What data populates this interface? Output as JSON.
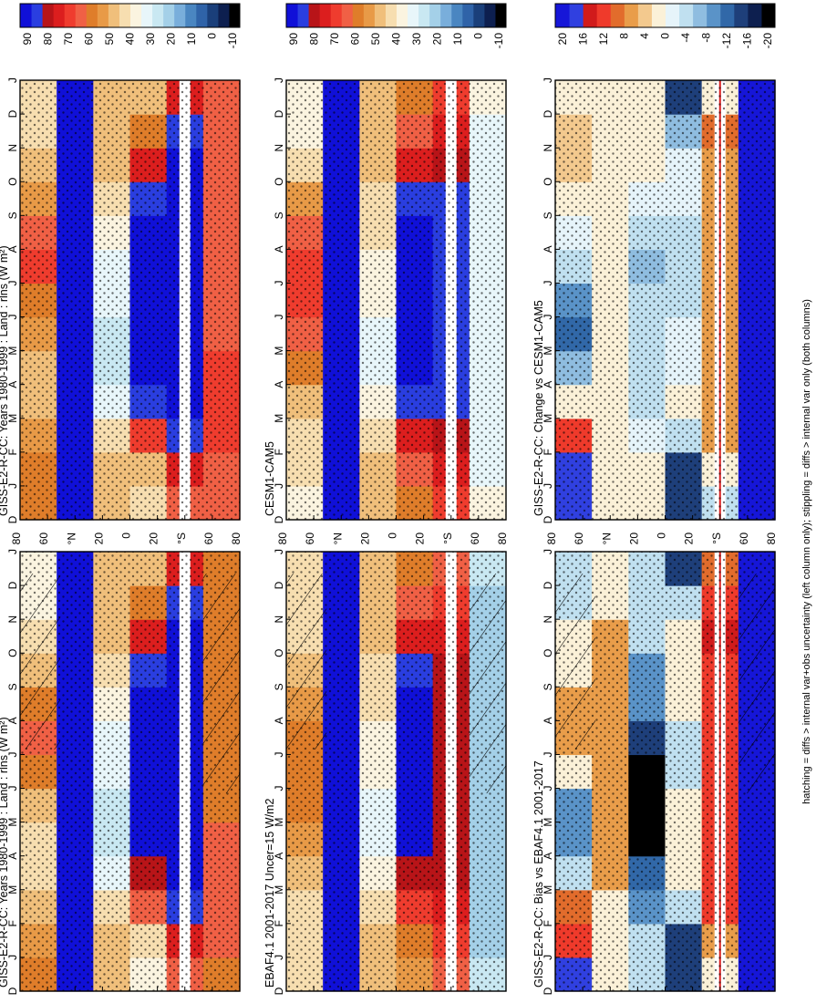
{
  "figure": {
    "footnote": "hatching = diffs > internal var+obs uncertainty (left column only); stippling = diffs > internal var only (both columns)"
  },
  "colors": {
    "abs": [
      "#000000",
      "#0d1f4f",
      "#1a3f7a",
      "#2f63a8",
      "#4a86c1",
      "#79aedb",
      "#a4d0e8",
      "#c9e8f2",
      "#e8f6fa",
      "#fbf4e0",
      "#f7deb0",
      "#f0bf7b",
      "#e89a47",
      "#df7d2a",
      "#f06045",
      "#ef3c2e",
      "#dc1e1e",
      "#b81418",
      "#2a3ee0",
      "#1010d8"
    ],
    "diff": [
      "#000000",
      "#0d1f4f",
      "#1e3f7a",
      "#3168a8",
      "#5a93c8",
      "#8fbde0",
      "#c0e0f0",
      "#e6f4fa",
      "#fbf1d8",
      "#f3c98e",
      "#e99d4a",
      "#e26c2c",
      "#ef3a2b",
      "#d11b1b",
      "#3040e0",
      "#1616d8"
    ]
  },
  "chart_data": [
    {
      "type": "heatmap",
      "title": "GISS-E2-R-CC: Years 1980-1999 : Land : rlns (W m²)",
      "xlabel": "",
      "ylabel": "",
      "x_ticks": [
        "D",
        "J",
        "F",
        "M",
        "A",
        "M",
        "J",
        "J",
        "A",
        "S",
        "O",
        "N",
        "D",
        "J"
      ],
      "y_ticks": [
        "80",
        "60",
        "°N",
        "20",
        "0",
        "20",
        "°S",
        "60",
        "80"
      ],
      "ylim": [
        -90,
        90
      ],
      "colorbar_ticks": [
        "90",
        "80",
        "70",
        "60",
        "50",
        "40",
        "30",
        "20",
        "10",
        "0",
        "-10"
      ],
      "hatching": true,
      "values": [
        [
          55,
          50,
          48,
          42,
          40,
          45,
          55,
          60,
          55,
          45,
          40,
          35,
          35
        ],
        [
          90,
          90,
          90,
          90,
          90,
          90,
          90,
          90,
          90,
          90,
          90,
          90,
          90
        ],
        [
          45,
          45,
          40,
          30,
          25,
          28,
          30,
          32,
          35,
          40,
          45,
          45,
          45
        ],
        [
          35,
          40,
          60,
          75,
          85,
          85,
          85,
          85,
          85,
          80,
          70,
          55,
          45
        ],
        [
          60,
          70,
          80,
          85,
          85,
          85,
          85,
          85,
          85,
          85,
          85,
          80,
          70
        ],
        [
          58,
          60,
          62,
          62,
          60,
          58,
          56,
          55,
          55,
          55,
          56,
          57,
          58
        ]
      ]
    },
    {
      "type": "heatmap",
      "title": "GISS-E2-R-CC: Years 1980-1999 : Land : rlns (W m²)",
      "xlabel": "",
      "ylabel": "",
      "x_ticks": [
        "D",
        "J",
        "F",
        "M",
        "A",
        "M",
        "J",
        "J",
        "A",
        "S",
        "O",
        "N",
        "D",
        "J"
      ],
      "y_ticks": [
        "80",
        "60",
        "°N",
        "20",
        "0",
        "20",
        "°S",
        "60",
        "80"
      ],
      "ylim": [
        -90,
        90
      ],
      "colorbar_ticks": [
        "90",
        "80",
        "70",
        "60",
        "50",
        "40",
        "30",
        "20",
        "10",
        "0",
        "-10"
      ],
      "hatching": false,
      "values": [
        [
          55,
          55,
          52,
          48,
          48,
          50,
          58,
          65,
          60,
          50,
          45,
          42,
          40
        ],
        [
          90,
          90,
          90,
          90,
          90,
          90,
          90,
          90,
          90,
          90,
          90,
          90,
          90
        ],
        [
          45,
          45,
          40,
          30,
          25,
          28,
          30,
          32,
          35,
          40,
          45,
          45,
          45
        ],
        [
          40,
          45,
          65,
          80,
          88,
          88,
          88,
          88,
          85,
          80,
          70,
          55,
          45
        ],
        [
          60,
          70,
          80,
          85,
          85,
          85,
          85,
          85,
          85,
          85,
          85,
          80,
          70
        ],
        [
          62,
          64,
          66,
          66,
          65,
          63,
          62,
          60,
          60,
          60,
          61,
          62,
          62
        ]
      ]
    },
    {
      "type": "heatmap",
      "title": "EBAF4.1 2001-2017 Uncer=15 W/m2",
      "xlabel": "",
      "ylabel": "",
      "x_ticks": [
        "D",
        "J",
        "F",
        "M",
        "A",
        "M",
        "J",
        "J",
        "A",
        "S",
        "O",
        "N",
        "D",
        "J"
      ],
      "y_ticks": [
        "80",
        "60",
        "°N",
        "20",
        "0",
        "20",
        "°S",
        "60",
        "80"
      ],
      "ylim": [
        -90,
        90
      ],
      "colorbar_ticks": [
        "90",
        "80",
        "70",
        "60",
        "50",
        "40",
        "30",
        "20",
        "10",
        "0",
        "-10"
      ],
      "hatching": true,
      "values": [
        [
          40,
          40,
          40,
          45,
          50,
          55,
          55,
          55,
          50,
          45,
          40,
          40,
          40
        ],
        [
          90,
          90,
          88,
          85,
          85,
          85,
          85,
          85,
          85,
          85,
          85,
          88,
          90
        ],
        [
          45,
          45,
          42,
          35,
          30,
          32,
          35,
          38,
          40,
          42,
          45,
          45,
          45
        ],
        [
          50,
          55,
          65,
          75,
          85,
          85,
          88,
          88,
          85,
          80,
          70,
          60,
          55
        ],
        [
          60,
          65,
          70,
          75,
          75,
          75,
          75,
          75,
          75,
          75,
          72,
          68,
          62
        ],
        [
          25,
          24,
          22,
          20,
          20,
          20,
          20,
          20,
          20,
          20,
          22,
          24,
          25
        ]
      ]
    },
    {
      "type": "heatmap",
      "title": "CESM1-CAM5",
      "xlabel": "",
      "ylabel": "",
      "x_ticks": [
        "D",
        "J",
        "F",
        "M",
        "A",
        "M",
        "J",
        "J",
        "A",
        "S",
        "O",
        "N",
        "D",
        "J"
      ],
      "y_ticks": [
        "80",
        "60",
        "°N",
        "20",
        "0",
        "20",
        "°S",
        "60",
        "80"
      ],
      "ylim": [
        -90,
        90
      ],
      "colorbar_ticks": [
        "90",
        "80",
        "70",
        "60",
        "50",
        "40",
        "30",
        "20",
        "10",
        "0",
        "-10"
      ],
      "hatching": false,
      "values": [
        [
          38,
          40,
          42,
          48,
          55,
          62,
          68,
          68,
          62,
          50,
          42,
          38,
          38
        ],
        [
          90,
          90,
          90,
          90,
          90,
          90,
          90,
          90,
          90,
          90,
          90,
          90,
          90
        ],
        [
          45,
          45,
          42,
          35,
          30,
          32,
          35,
          38,
          40,
          42,
          45,
          45,
          45
        ],
        [
          55,
          60,
          70,
          80,
          90,
          90,
          90,
          90,
          88,
          82,
          72,
          62,
          58
        ],
        [
          65,
          70,
          75,
          80,
          80,
          80,
          80,
          80,
          80,
          80,
          78,
          72,
          68
        ],
        [
          35,
          34,
          32,
          30,
          30,
          30,
          30,
          30,
          30,
          30,
          32,
          34,
          35
        ]
      ]
    },
    {
      "type": "heatmap",
      "title": "GISS-E2-R-CC: Bias vs EBAF4.1 2001-2017",
      "xlabel": "",
      "ylabel": "",
      "x_ticks": [
        "D",
        "J",
        "F",
        "M",
        "A",
        "M",
        "J",
        "J",
        "A",
        "S",
        "O",
        "N",
        "D",
        "J"
      ],
      "y_ticks": [
        "80",
        "60",
        "°N",
        "20",
        "0",
        "20",
        "°S",
        "60",
        "80"
      ],
      "ylim": [
        -90,
        90
      ],
      "colorbar_ticks": [
        "20",
        "16",
        "12",
        "8",
        "4",
        "0",
        "-4",
        "-8",
        "-12",
        "-16",
        "-20"
      ],
      "hatching": true,
      "values": [
        [
          15,
          10,
          8,
          -3,
          -10,
          -10,
          0,
          5,
          5,
          0,
          0,
          -5,
          -5
        ],
        [
          0,
          0,
          2,
          5,
          5,
          5,
          5,
          5,
          5,
          5,
          5,
          2,
          0
        ],
        [
          -5,
          -5,
          -8,
          -12,
          -20,
          -20,
          -20,
          -15,
          -10,
          -8,
          -5,
          -5,
          -5
        ],
        [
          -15,
          -15,
          -5,
          0,
          0,
          0,
          -3,
          -3,
          0,
          0,
          0,
          -5,
          -15
        ],
        [
          0,
          5,
          10,
          10,
          10,
          10,
          10,
          10,
          10,
          10,
          13,
          12,
          8
        ],
        [
          35,
          36,
          44,
          46,
          45,
          43,
          42,
          40,
          40,
          40,
          39,
          38,
          37
        ]
      ]
    },
    {
      "type": "heatmap",
      "title": "GISS-E2-R-CC: Change vs CESM1-CAM5",
      "xlabel": "",
      "ylabel": "",
      "x_ticks": [
        "D",
        "J",
        "F",
        "M",
        "A",
        "M",
        "J",
        "J",
        "A",
        "S",
        "O",
        "N",
        "D",
        "J"
      ],
      "y_ticks": [
        "80",
        "60",
        "°N",
        "20",
        "0",
        "20",
        "°S",
        "60",
        "80"
      ],
      "ylim": [
        -90,
        90
      ],
      "colorbar_ticks": [
        "20",
        "16",
        "12",
        "8",
        "4",
        "0",
        "-4",
        "-8",
        "-12",
        "-16",
        "-20"
      ],
      "hatching": false,
      "values": [
        [
          17,
          15,
          10,
          0,
          -7,
          -12,
          -10,
          -3,
          -2,
          0,
          3,
          4,
          2
        ],
        [
          0,
          0,
          0,
          0,
          0,
          0,
          0,
          0,
          0,
          0,
          0,
          0,
          0
        ],
        [
          0,
          0,
          -2,
          -5,
          -5,
          -4,
          -5,
          -6,
          -5,
          -2,
          0,
          0,
          0
        ],
        [
          -15,
          -15,
          -5,
          0,
          -2,
          -2,
          -5,
          -5,
          -3,
          -2,
          -2,
          -7,
          -13
        ],
        [
          -5,
          0,
          5,
          5,
          5,
          5,
          5,
          5,
          5,
          5,
          7,
          8,
          2
        ],
        [
          27,
          30,
          34,
          36,
          35,
          33,
          32,
          30,
          30,
          30,
          29,
          28,
          27
        ]
      ]
    }
  ]
}
